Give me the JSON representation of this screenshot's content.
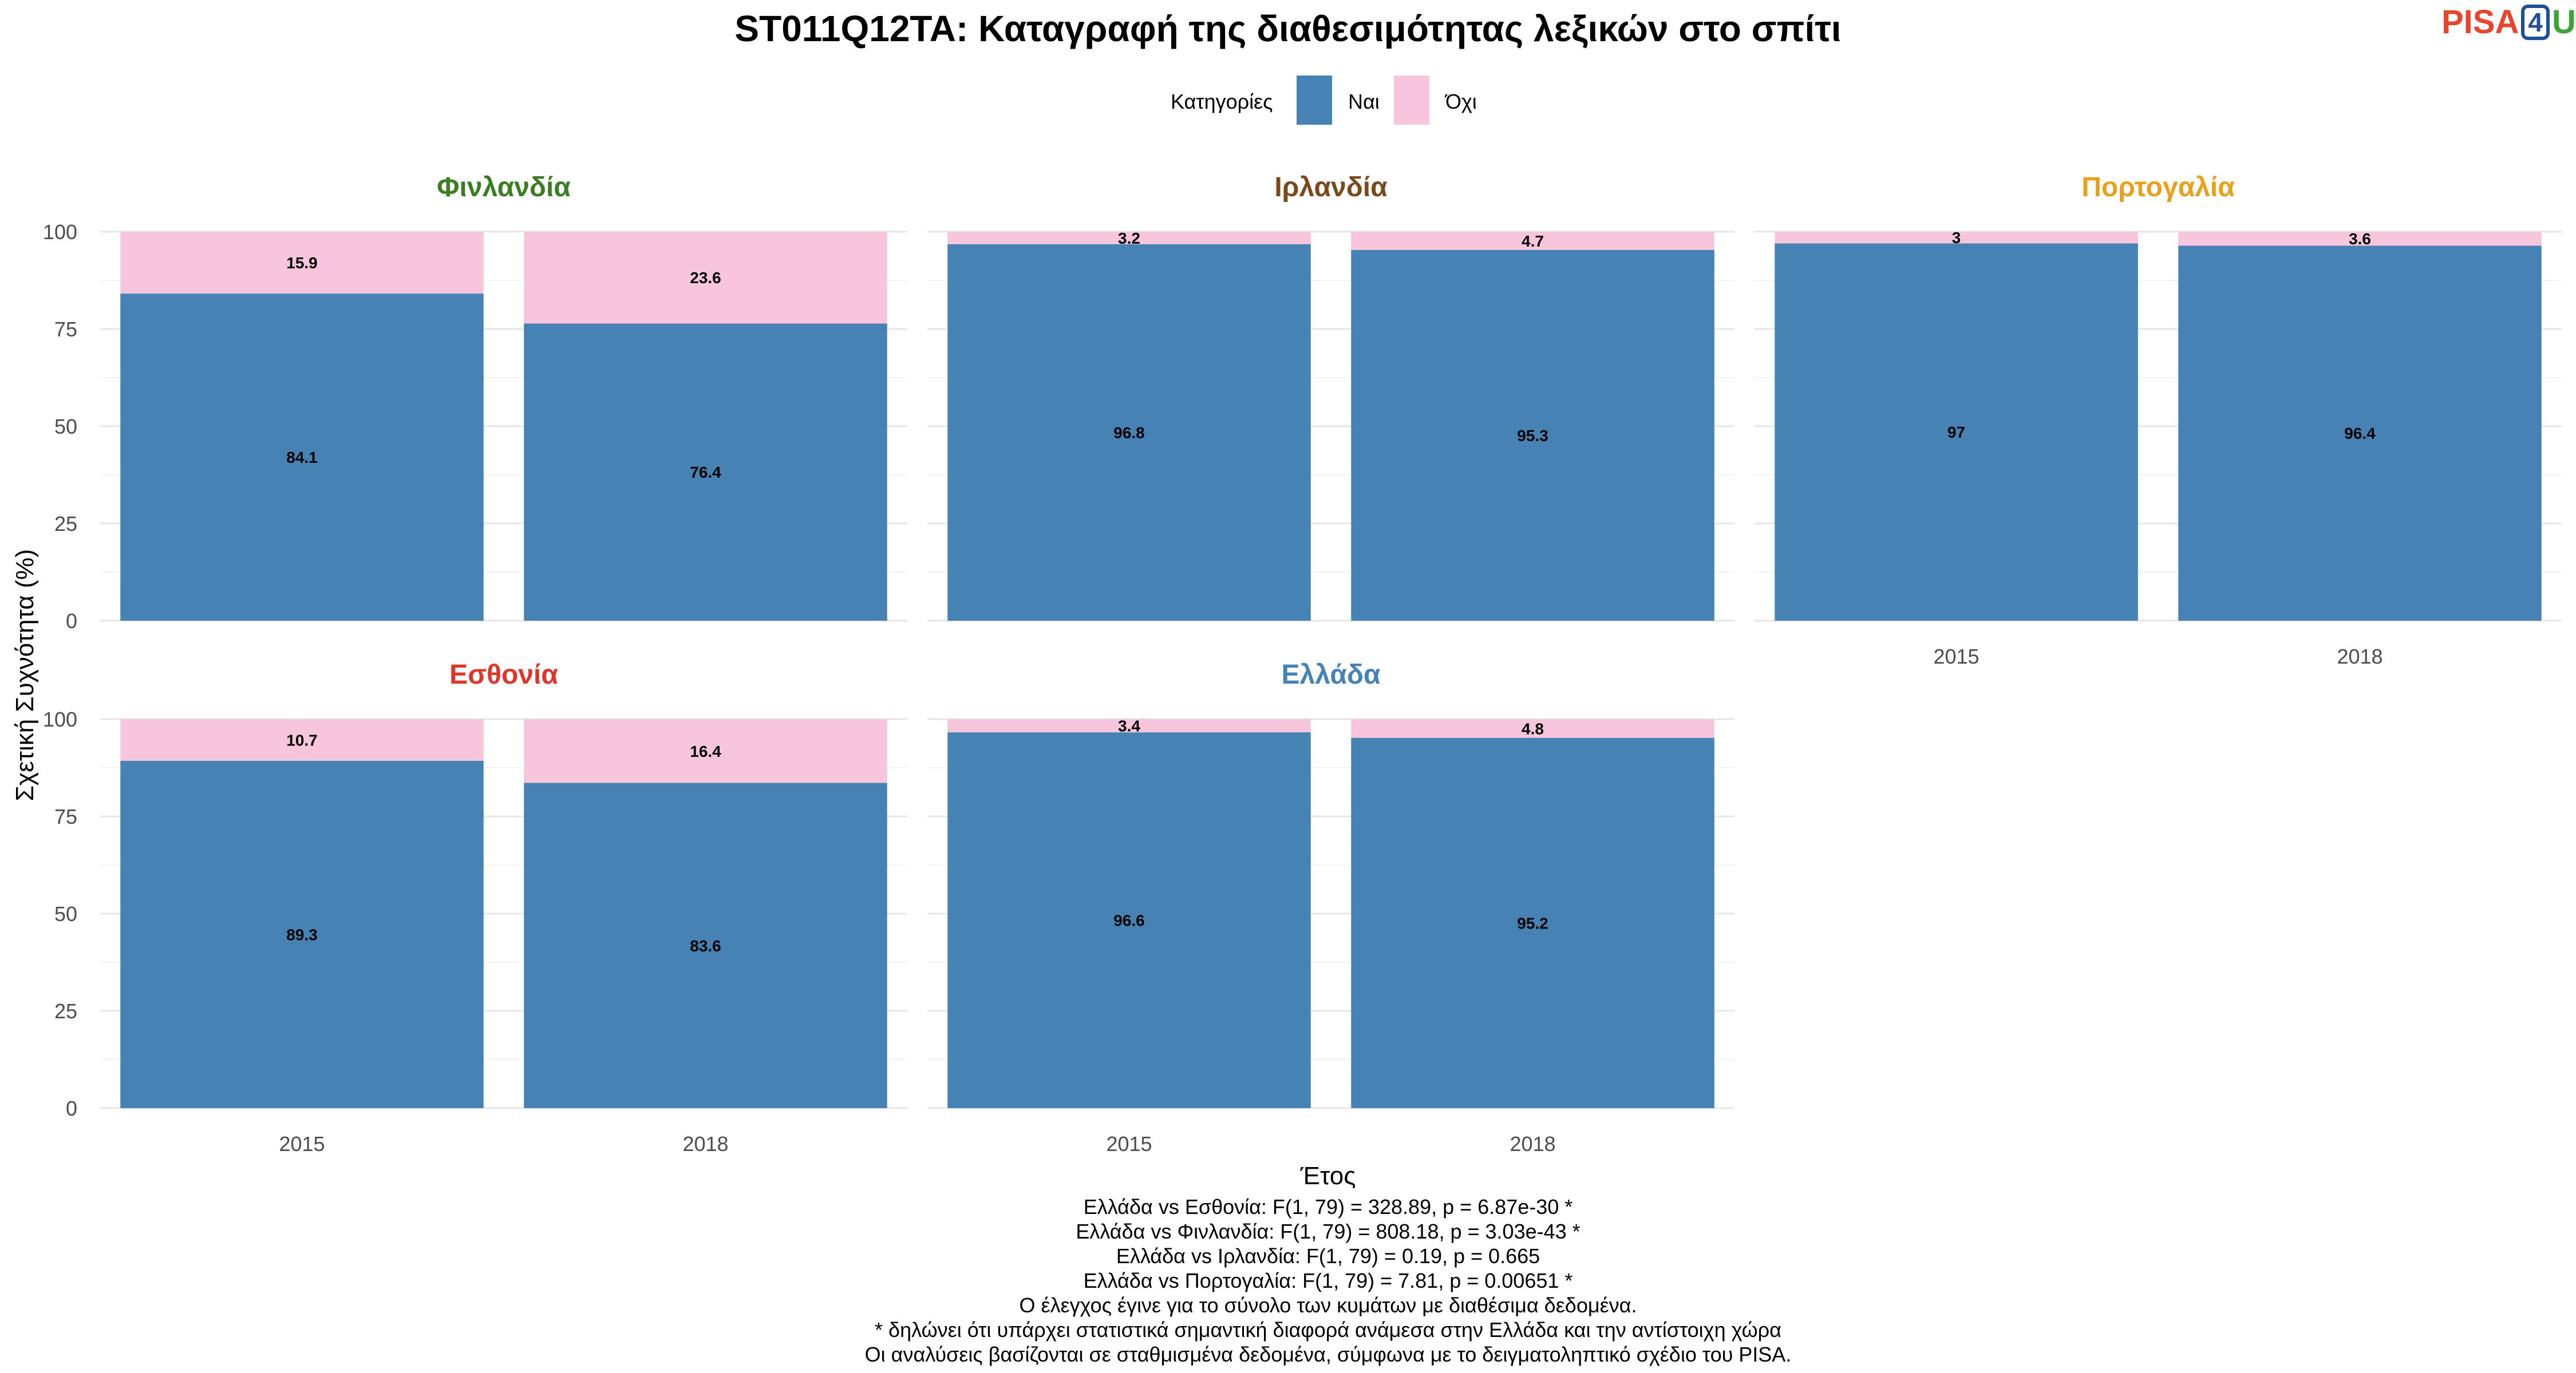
{
  "logo": {
    "part1": "PISA",
    "part2": "4",
    "part3": "U"
  },
  "chart_data": {
    "type": "bar",
    "stacked": true,
    "title": "ST011Q12TA: Καταγραφή της διαθεσιμότητας λεξικών στο σπίτι",
    "xlabel": "Έτος",
    "ylabel": "Σχετική Συχνότητα (%)",
    "ylim": [
      0,
      100
    ],
    "yticks": [
      0,
      25,
      50,
      75,
      100
    ],
    "grid": true,
    "legend": {
      "title": "Κατηγορίες",
      "position": "top",
      "entries": [
        {
          "label": "Ναι",
          "color": "#4682b4"
        },
        {
          "label": "Όχι",
          "color": "#f7c6dc"
        }
      ]
    },
    "categories": [
      "2015",
      "2018"
    ],
    "panels": [
      {
        "name": "Φινλανδία",
        "color": "#3a7d22",
        "series": [
          {
            "name": "Ναι",
            "values": [
              84.1,
              76.4
            ]
          },
          {
            "name": "Όχι",
            "values": [
              15.9,
              23.6
            ]
          }
        ]
      },
      {
        "name": "Ιρλανδία",
        "color": "#7a4a1c",
        "series": [
          {
            "name": "Ναι",
            "values": [
              96.8,
              95.3
            ]
          },
          {
            "name": "Όχι",
            "values": [
              3.2,
              4.7
            ]
          }
        ]
      },
      {
        "name": "Πορτογαλία",
        "color": "#e8a21a",
        "series": [
          {
            "name": "Ναι",
            "values": [
              97,
              96.4
            ]
          },
          {
            "name": "Όχι",
            "values": [
              3,
              3.6
            ]
          }
        ]
      },
      {
        "name": "Εσθονία",
        "color": "#e0352b",
        "series": [
          {
            "name": "Ναι",
            "values": [
              89.3,
              83.6
            ]
          },
          {
            "name": "Όχι",
            "values": [
              10.7,
              16.4
            ]
          }
        ]
      },
      {
        "name": "Ελλάδα",
        "color": "#4682b4",
        "series": [
          {
            "name": "Ναι",
            "values": [
              96.6,
              95.2
            ]
          },
          {
            "name": "Όχι",
            "values": [
              3.4,
              4.8
            ]
          }
        ]
      }
    ],
    "caption": [
      "Ελλάδα vs Εσθονία: F(1, 79) = 328.89, p = 6.87e-30 *",
      "Ελλάδα vs Φινλανδία: F(1, 79) = 808.18, p = 3.03e-43 *",
      "Ελλάδα vs Ιρλανδία: F(1, 79) = 0.19, p = 0.665",
      "Ελλάδα vs Πορτογαλία: F(1, 79) = 7.81, p = 0.00651 *",
      "Ο έλεγχος έγινε για το σύνολο των κυμάτων με διαθέσιμα δεδομένα.",
      "* δηλώνει ότι υπάρχει στατιστικά σημαντική διαφορά ανάμεσα στην Ελλάδα και την αντίστοιχη χώρα",
      "Οι αναλύσεις βασίζονται σε σταθμισμένα δεδομένα, σύμφωνα με το δειγματοληπτικό σχέδιο του PISA."
    ]
  }
}
